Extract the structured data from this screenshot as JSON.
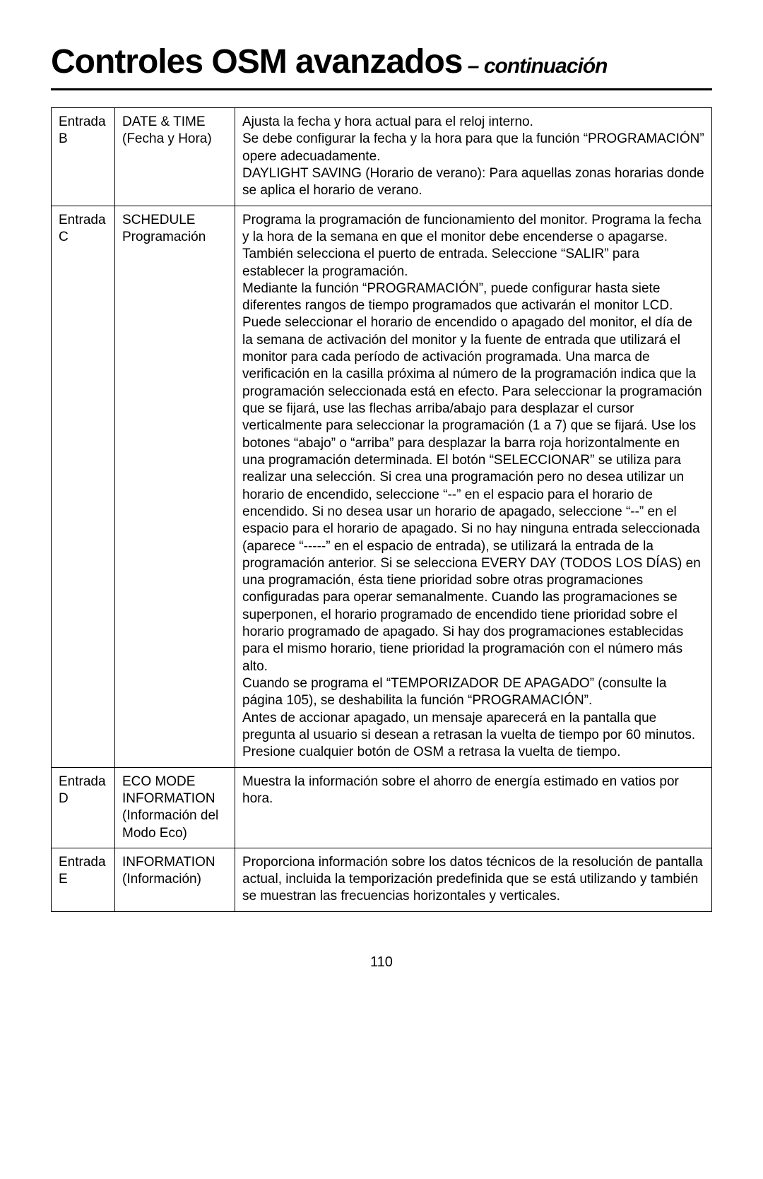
{
  "title_main": "Controles OSM avanzados",
  "title_sub": " – continuación",
  "page_number": "110",
  "rows": [
    {
      "entry": "Entrada B",
      "feature": "DATE & TIME (Fecha y Hora)",
      "desc": "Ajusta la fecha y hora actual para el reloj interno.\nSe debe configurar la fecha y la hora para que la función “PROGRAMACIÓN” opere adecuadamente.\nDAYLIGHT SAVING (Horario de verano): Para aquellas zonas horarias donde se aplica el horario de verano."
    },
    {
      "entry": "Entrada C",
      "feature": "SCHEDULE Programación",
      "desc": "Programa la programación de funcionamiento del monitor. Programa la fecha y la hora de la semana en que el monitor debe encenderse o apagarse. También selecciona el puerto de entrada. Seleccione “SALIR” para establecer la programación.\nMediante la función “PROGRAMACIÓN”, puede configurar hasta siete diferentes rangos de tiempo programados que activarán el monitor LCD. Puede seleccionar el horario de encendido o apagado del monitor, el día de la semana de activación del monitor y la fuente de entrada que utilizará el monitor para cada período de activación programada. Una marca de verificación en la casilla próxima al número de la programación indica que la programación seleccionada está en efecto. Para seleccionar la programación que se fijará, use las flechas arriba/abajo para desplazar el cursor verticalmente para seleccionar la programación (1 a 7) que se fijará. Use los botones “abajo” o “arriba” para desplazar la barra roja horizontalmente en una programación determinada. El botón “SELECCIONAR” se utiliza para realizar una selección. Si crea una programación pero no desea utilizar un horario de encendido, seleccione “--” en el espacio para el horario de encendido. Si no desea usar un horario de apagado, seleccione “--” en el espacio para el horario de apagado. Si no hay ninguna entrada seleccionada (aparece “-----” en el espacio de entrada), se utilizará la entrada de la programación anterior. Si se selecciona EVERY DAY (TODOS LOS DÍAS) en una programación, ésta tiene prioridad sobre otras programaciones configuradas para operar semanalmente. Cuando las programaciones se superponen, el horario programado de encendido tiene prioridad sobre el horario programado de apagado. Si hay dos programaciones establecidas para el mismo horario, tiene prioridad la programación con el número más alto.\nCuando se programa el “TEMPORIZADOR DE APAGADO” (consulte la página 105), se deshabilita la función “PROGRAMACIÓN”.\nAntes de accionar apagado, un mensaje aparecerá en la pantalla que pregunta al usuario si desean a retrasan la vuelta de tiempo por 60 minutos. Presione cualquier botón de OSM a retrasa la vuelta de tiempo."
    },
    {
      "entry": "Entrada D",
      "feature": "ECO MODE INFORMATION (Información del Modo Eco)",
      "desc": "Muestra la información sobre el ahorro de energía estimado en vatios por hora."
    },
    {
      "entry": "Entrada E",
      "feature": "INFORMATION (Información)",
      "desc": "Proporciona información sobre los datos técnicos de la resolución de pantalla actual, incluida la temporización predefinida que se está utilizando y también se muestran las frecuencias horizontales y verticales."
    }
  ]
}
